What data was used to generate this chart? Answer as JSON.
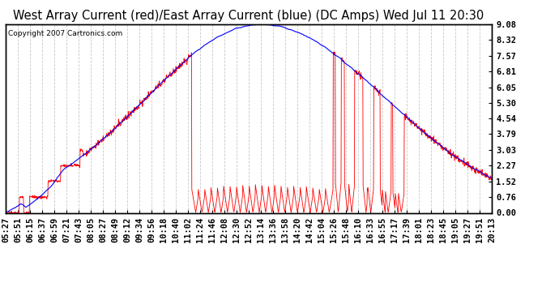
{
  "title": "West Array Current (red)/East Array Current (blue) (DC Amps) Wed Jul 11 20:30",
  "copyright": "Copyright 2007 Cartronics.com",
  "yticks": [
    0.0,
    0.76,
    1.52,
    2.27,
    3.03,
    3.79,
    4.54,
    5.3,
    6.05,
    6.81,
    7.57,
    8.32,
    9.08
  ],
  "ymin": 0.0,
  "ymax": 9.08,
  "xtick_labels": [
    "05:27",
    "05:51",
    "06:15",
    "06:37",
    "06:59",
    "07:21",
    "07:43",
    "08:05",
    "08:27",
    "08:49",
    "09:12",
    "09:34",
    "09:56",
    "10:18",
    "10:40",
    "11:02",
    "11:24",
    "11:46",
    "12:08",
    "12:30",
    "12:52",
    "13:14",
    "13:36",
    "13:58",
    "14:20",
    "14:42",
    "15:04",
    "15:26",
    "15:48",
    "16:10",
    "16:33",
    "16:55",
    "17:17",
    "17:39",
    "18:01",
    "18:23",
    "18:45",
    "19:05",
    "19:27",
    "19:51",
    "20:13"
  ],
  "background_color": "#ffffff",
  "grid_color": "#c8c8c8",
  "title_fontsize": 10.5,
  "tick_fontsize": 7.5,
  "copyright_fontsize": 6.5,
  "line_red": "red",
  "line_blue": "blue",
  "figwidth": 6.9,
  "figheight": 3.75,
  "dpi": 100
}
